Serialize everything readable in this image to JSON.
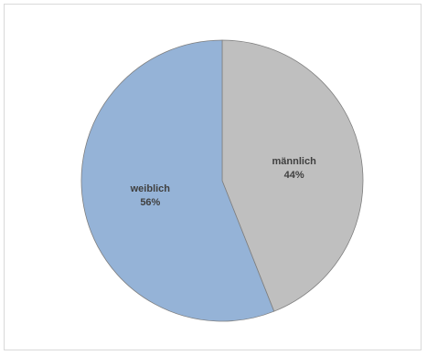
{
  "chart_data": {
    "type": "pie",
    "title": "",
    "categories": [
      "männlich",
      "weiblich"
    ],
    "values": [
      44,
      56
    ],
    "labels": [
      "44%",
      "56%"
    ],
    "colors": [
      "#bfbfbf",
      "#95b3d7"
    ],
    "start_angle_deg": 0,
    "direction": "clockwise",
    "legend": "none"
  }
}
